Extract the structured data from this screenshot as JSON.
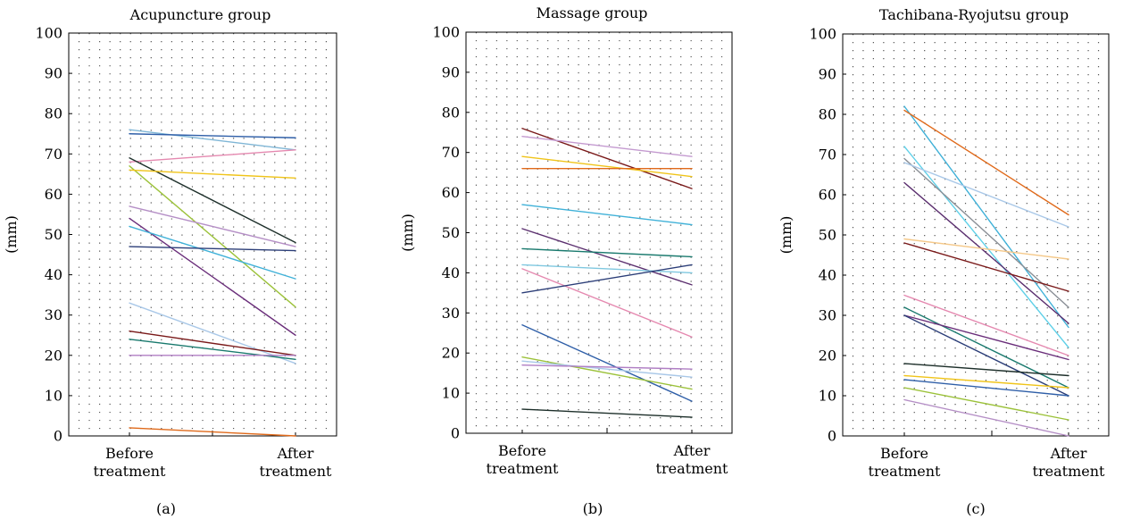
{
  "chart_data": [
    {
      "type": "line",
      "title": "Acupuncture group",
      "ylabel": "(mm)",
      "xlabel": "",
      "panel_label": "(a)",
      "categories": [
        "Before treatment",
        "After treatment"
      ],
      "category_lines": [
        [
          "Before",
          "treatment"
        ],
        [
          "After",
          "treatment"
        ]
      ],
      "ylim": [
        0,
        100
      ],
      "yticks": [
        0,
        10,
        20,
        30,
        40,
        50,
        60,
        70,
        80,
        90,
        100
      ],
      "grid": "dotted",
      "series": [
        {
          "values": [
            76,
            71
          ],
          "color": "#7fb6d6"
        },
        {
          "values": [
            75,
            74
          ],
          "color": "#2f5fa8"
        },
        {
          "values": [
            68,
            71
          ],
          "color": "#e589b0"
        },
        {
          "values": [
            69,
            48
          ],
          "color": "#1d2f2a"
        },
        {
          "values": [
            67,
            32
          ],
          "color": "#9cc23a"
        },
        {
          "values": [
            66,
            64
          ],
          "color": "#f0c419"
        },
        {
          "values": [
            57,
            47
          ],
          "color": "#b58fc6"
        },
        {
          "values": [
            54,
            25
          ],
          "color": "#6a2e7a"
        },
        {
          "values": [
            52,
            39
          ],
          "color": "#3fb1d8"
        },
        {
          "values": [
            47,
            46
          ],
          "color": "#2c3e78"
        },
        {
          "values": [
            33,
            18
          ],
          "color": "#a9c8e8"
        },
        {
          "values": [
            26,
            20
          ],
          "color": "#7a1a1a"
        },
        {
          "values": [
            24,
            19
          ],
          "color": "#1a7a6e"
        },
        {
          "values": [
            20,
            20
          ],
          "color": "#b07fc4"
        },
        {
          "values": [
            2,
            0
          ],
          "color": "#e06a1b"
        }
      ]
    },
    {
      "type": "line",
      "title": "Massage group",
      "ylabel": "(mm)",
      "xlabel": "",
      "panel_label": "(b)",
      "categories": [
        "Before treatment",
        "After treatment"
      ],
      "category_lines": [
        [
          "Before",
          "treatment"
        ],
        [
          "After",
          "treatment"
        ]
      ],
      "ylim": [
        0,
        100
      ],
      "yticks": [
        0,
        10,
        20,
        30,
        40,
        50,
        60,
        70,
        80,
        90,
        100
      ],
      "grid": "dotted",
      "series": [
        {
          "values": [
            76,
            61
          ],
          "color": "#7a1a1a"
        },
        {
          "values": [
            74,
            69
          ],
          "color": "#c49ad0"
        },
        {
          "values": [
            69,
            64
          ],
          "color": "#f0c419"
        },
        {
          "values": [
            66,
            66
          ],
          "color": "#e06a1b"
        },
        {
          "values": [
            57,
            52
          ],
          "color": "#3fb1d8"
        },
        {
          "values": [
            51,
            37
          ],
          "color": "#5a2e6e"
        },
        {
          "values": [
            46,
            44
          ],
          "color": "#1a7a6e"
        },
        {
          "values": [
            42,
            40
          ],
          "color": "#7fc8e0"
        },
        {
          "values": [
            41,
            24
          ],
          "color": "#e589b0"
        },
        {
          "values": [
            35,
            42
          ],
          "color": "#2c3e78"
        },
        {
          "values": [
            27,
            8
          ],
          "color": "#2f5fa8"
        },
        {
          "values": [
            19,
            11
          ],
          "color": "#9cc23a"
        },
        {
          "values": [
            18,
            14
          ],
          "color": "#a9c8e8"
        },
        {
          "values": [
            17,
            16
          ],
          "color": "#b07fc4"
        },
        {
          "values": [
            6,
            4
          ],
          "color": "#1d2f2a"
        }
      ]
    },
    {
      "type": "line",
      "title": "Tachibana-Ryojutsu group",
      "ylabel": "(mm)",
      "xlabel": "",
      "panel_label": "(c)",
      "categories": [
        "Before treatment",
        "After treatment"
      ],
      "category_lines": [
        [
          "Before",
          "treatment"
        ],
        [
          "After",
          "treatment"
        ]
      ],
      "ylim": [
        0,
        100
      ],
      "yticks": [
        0,
        10,
        20,
        30,
        40,
        50,
        60,
        70,
        80,
        90,
        100
      ],
      "grid": "dotted",
      "series": [
        {
          "values": [
            82,
            27
          ],
          "color": "#3fb1d8"
        },
        {
          "values": [
            81,
            55
          ],
          "color": "#e06a1b"
        },
        {
          "values": [
            72,
            22
          ],
          "color": "#5fd0e8"
        },
        {
          "values": [
            69,
            32
          ],
          "color": "#8a8f96"
        },
        {
          "values": [
            68,
            52
          ],
          "color": "#a9c8e8"
        },
        {
          "values": [
            63,
            28
          ],
          "color": "#5a2e6e"
        },
        {
          "values": [
            49,
            44
          ],
          "color": "#f5c98a"
        },
        {
          "values": [
            48,
            36
          ],
          "color": "#7a1a1a"
        },
        {
          "values": [
            35,
            20
          ],
          "color": "#e589b0"
        },
        {
          "values": [
            32,
            12
          ],
          "color": "#1a7a6e"
        },
        {
          "values": [
            30,
            19
          ],
          "color": "#6a2e7a"
        },
        {
          "values": [
            30,
            10
          ],
          "color": "#2c3e78"
        },
        {
          "values": [
            18,
            15
          ],
          "color": "#1d2f2a"
        },
        {
          "values": [
            15,
            12
          ],
          "color": "#f0c419"
        },
        {
          "values": [
            14,
            10
          ],
          "color": "#2f5fa8"
        },
        {
          "values": [
            12,
            4
          ],
          "color": "#9cc23a"
        },
        {
          "values": [
            9,
            0
          ],
          "color": "#b58fc6"
        }
      ]
    }
  ]
}
